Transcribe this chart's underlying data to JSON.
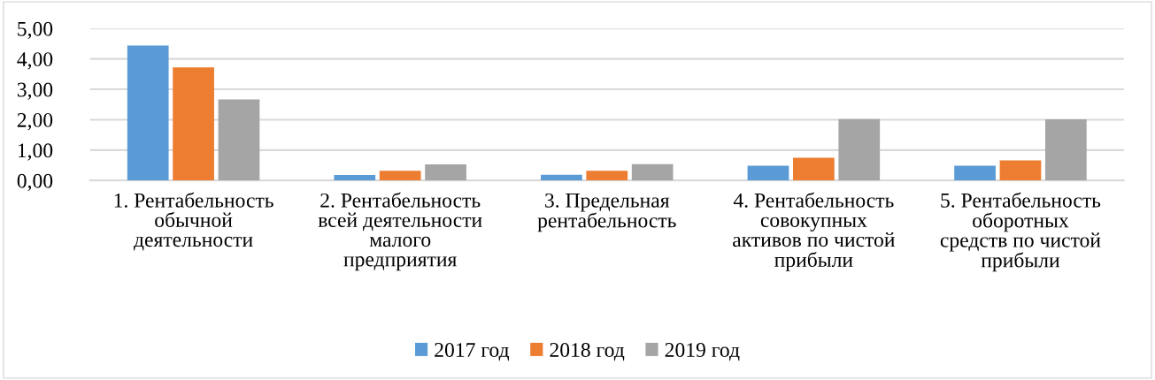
{
  "chart_data": {
    "type": "bar",
    "categories": [
      "1. Рентабельность\nобычной\nдеятельности",
      "2. Рентабельность\nвсей деятельности\nмалого\nпредприятия",
      "3. Предельная\nрентабельность",
      "4. Рентабельность\nсовокупных\nактивов по чистой\nприбыли",
      "5. Рентабельность\nоборотных\nсредств по чистой\nприбыли"
    ],
    "series": [
      {
        "name": "2017 год",
        "color": "#5b9bd5",
        "values": [
          4.44,
          0.18,
          0.19,
          0.49,
          0.49
        ]
      },
      {
        "name": "2018 год",
        "color": "#ed7d31",
        "values": [
          3.72,
          0.32,
          0.32,
          0.75,
          0.66
        ]
      },
      {
        "name": "2019 год",
        "color": "#a5a5a5",
        "values": [
          2.67,
          0.53,
          0.54,
          2.02,
          2.01
        ]
      }
    ],
    "ylim": [
      0,
      5
    ],
    "yticks": [
      {
        "value": 0,
        "label": "0,00"
      },
      {
        "value": 1,
        "label": "1,00"
      },
      {
        "value": 2,
        "label": "2,00"
      },
      {
        "value": 3,
        "label": "3,00"
      },
      {
        "value": 4,
        "label": "4,00"
      },
      {
        "value": 5,
        "label": "5,00"
      }
    ],
    "grid": "y",
    "legend": "bottom"
  }
}
